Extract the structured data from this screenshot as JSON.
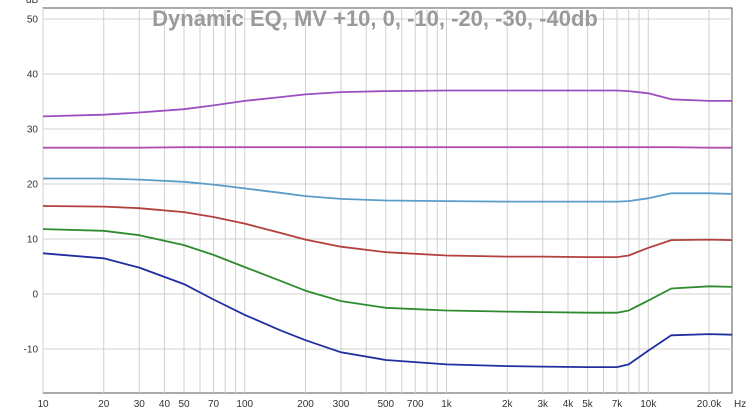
{
  "chart_data": {
    "type": "line",
    "title": "Dynamic EQ, MV +10, 0, -10, -20, -30, -40db",
    "ylabel": "dB",
    "xlabel": "Hz",
    "xscale": "log",
    "xlim": [
      10,
      26000
    ],
    "ylim": [
      -18,
      52
    ],
    "grid": true,
    "yticks": [
      -10,
      0,
      10,
      20,
      30,
      40,
      50
    ],
    "yticklabels": [
      "-10",
      "0",
      "10",
      "20",
      "30",
      "40",
      "50"
    ],
    "xticks": [
      10,
      20,
      30,
      40,
      50,
      70,
      100,
      200,
      300,
      500,
      700,
      1000,
      2000,
      3000,
      4000,
      5000,
      7000,
      10000,
      20000
    ],
    "xticklabels": [
      "10",
      "20",
      "30",
      "40",
      "50",
      "70",
      "100",
      "200",
      "300",
      "500",
      "700",
      "1k",
      "2k",
      "3k",
      "4k",
      "5k",
      "7k",
      "10k",
      "20.0k"
    ],
    "x": [
      10,
      20,
      30,
      50,
      70,
      100,
      150,
      200,
      300,
      500,
      1000,
      2000,
      3000,
      5000,
      7000,
      8000,
      10000,
      13000,
      20000,
      26000
    ],
    "series": [
      {
        "color": "#9b4fc0",
        "values": [
          32.3,
          32.6,
          33.0,
          33.6,
          34.3,
          35.1,
          35.8,
          36.3,
          36.7,
          36.9,
          37.0,
          37.0,
          37.0,
          37.0,
          37.0,
          36.9,
          36.5,
          35.4,
          35.1,
          35.1
        ]
      },
      {
        "color": "#b44fb0",
        "values": [
          26.6,
          26.6,
          26.6,
          26.7,
          26.7,
          26.7,
          26.7,
          26.7,
          26.7,
          26.7,
          26.7,
          26.7,
          26.7,
          26.7,
          26.7,
          26.7,
          26.7,
          26.7,
          26.6,
          26.6
        ]
      },
      {
        "color": "#5a9dc9",
        "values": [
          21.0,
          21.0,
          20.8,
          20.4,
          19.9,
          19.2,
          18.4,
          17.8,
          17.3,
          17.0,
          16.9,
          16.8,
          16.8,
          16.8,
          16.8,
          16.9,
          17.4,
          18.3,
          18.3,
          18.2
        ]
      },
      {
        "color": "#b2403c",
        "values": [
          16.0,
          15.9,
          15.6,
          14.9,
          14.0,
          12.8,
          11.1,
          9.9,
          8.6,
          7.6,
          7.0,
          6.8,
          6.8,
          6.7,
          6.7,
          7.0,
          8.4,
          9.8,
          9.9,
          9.8
        ]
      },
      {
        "color": "#2f8b2f",
        "values": [
          11.8,
          11.5,
          10.7,
          8.9,
          7.1,
          4.9,
          2.4,
          0.6,
          -1.3,
          -2.5,
          -3.0,
          -3.2,
          -3.3,
          -3.4,
          -3.4,
          -3.0,
          -1.2,
          1.0,
          1.4,
          1.3
        ]
      },
      {
        "color": "#1f2fa0",
        "values": [
          7.4,
          6.5,
          4.8,
          1.8,
          -1.0,
          -3.8,
          -6.6,
          -8.4,
          -10.6,
          -12.0,
          -12.8,
          -13.1,
          -13.2,
          -13.3,
          -13.3,
          -12.8,
          -10.3,
          -7.5,
          -7.3,
          -7.4
        ]
      }
    ]
  }
}
